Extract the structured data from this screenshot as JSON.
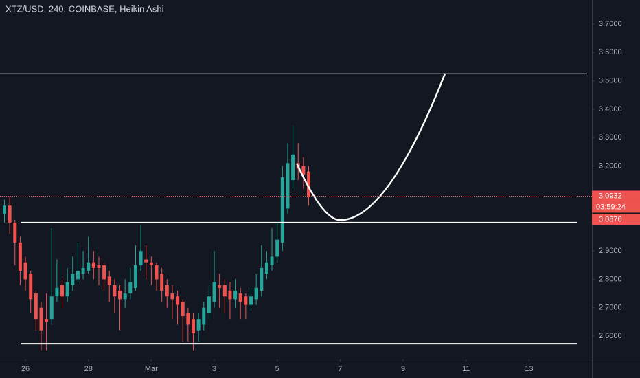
{
  "chart_data": {
    "type": "candlestick",
    "title": "XTZ/USD, 240, COINBASE, Heikin Ashi",
    "x": [
      -16,
      -12,
      -8,
      -4,
      0,
      4,
      8,
      12,
      16,
      20,
      24,
      28,
      32,
      36,
      40,
      44,
      48,
      52,
      56,
      60,
      64,
      68,
      72,
      76,
      80,
      84,
      88,
      92,
      96,
      100,
      104,
      108,
      112,
      116,
      120,
      124,
      128,
      132,
      136,
      140,
      144,
      148,
      152,
      156,
      160,
      164,
      168,
      172,
      176,
      180,
      184,
      188,
      192,
      196,
      200,
      204,
      208,
      212,
      216
    ],
    "open": [
      3.03,
      3.06,
      3.0,
      2.93,
      2.86,
      2.82,
      2.75,
      2.7,
      2.66,
      2.66,
      2.74,
      2.78,
      2.74,
      2.78,
      2.8,
      2.82,
      2.83,
      2.86,
      2.85,
      2.85,
      2.81,
      2.78,
      2.76,
      2.73,
      2.75,
      2.77,
      2.85,
      2.87,
      2.86,
      2.85,
      2.82,
      2.78,
      2.75,
      2.74,
      2.72,
      2.68,
      2.66,
      2.62,
      2.64,
      2.68,
      2.72,
      2.78,
      2.78,
      2.76,
      2.73,
      2.75,
      2.74,
      2.71,
      2.73,
      2.76,
      2.82,
      2.85,
      2.88,
      2.93,
      3.05,
      3.15,
      3.21,
      3.2,
      3.18
    ],
    "high": [
      3.08,
      3.09,
      3.01,
      2.95,
      2.88,
      2.83,
      2.76,
      2.72,
      2.75,
      2.98,
      2.87,
      2.8,
      2.84,
      2.88,
      2.93,
      2.9,
      2.95,
      2.9,
      2.88,
      2.86,
      2.83,
      2.8,
      2.78,
      2.8,
      2.84,
      2.92,
      2.99,
      2.92,
      2.88,
      2.86,
      2.84,
      2.8,
      2.78,
      2.76,
      2.73,
      2.7,
      2.68,
      2.68,
      2.72,
      2.78,
      2.9,
      2.82,
      2.8,
      2.79,
      2.8,
      2.77,
      2.75,
      2.77,
      2.82,
      2.92,
      2.9,
      2.98,
      3.0,
      3.2,
      3.28,
      3.34,
      3.28,
      3.23,
      3.2
    ],
    "low": [
      3.0,
      2.96,
      2.85,
      2.78,
      2.76,
      2.68,
      2.62,
      2.55,
      2.55,
      2.64,
      2.72,
      2.7,
      2.72,
      2.76,
      2.79,
      2.8,
      2.82,
      2.8,
      2.78,
      2.76,
      2.72,
      2.68,
      2.62,
      2.7,
      2.73,
      2.76,
      2.83,
      2.8,
      2.78,
      2.76,
      2.72,
      2.7,
      2.66,
      2.64,
      2.58,
      2.58,
      2.55,
      2.58,
      2.62,
      2.66,
      2.7,
      2.7,
      2.68,
      2.66,
      2.7,
      2.66,
      2.66,
      2.69,
      2.71,
      2.74,
      2.8,
      2.83,
      2.86,
      2.9,
      3.03,
      3.12,
      3.15,
      3.12,
      3.06
    ],
    "close": [
      3.06,
      3.0,
      2.93,
      2.83,
      2.8,
      2.73,
      2.66,
      2.62,
      2.65,
      2.74,
      2.77,
      2.74,
      2.79,
      2.82,
      2.83,
      2.84,
      2.86,
      2.84,
      2.84,
      2.8,
      2.78,
      2.74,
      2.73,
      2.75,
      2.79,
      2.85,
      2.9,
      2.86,
      2.85,
      2.8,
      2.76,
      2.74,
      2.73,
      2.71,
      2.67,
      2.64,
      2.61,
      2.66,
      2.7,
      2.74,
      2.79,
      2.77,
      2.74,
      2.73,
      2.76,
      2.72,
      2.71,
      2.74,
      2.77,
      2.84,
      2.86,
      2.88,
      2.94,
      3.16,
      3.21,
      3.24,
      3.19,
      3.17,
      3.09
    ],
    "up_color": "#26a69a",
    "down_color": "#ef5350",
    "xlim": [
      -19.4,
      432
    ],
    "ylim": [
      2.52,
      3.785
    ],
    "xticks": [
      {
        "value": 0,
        "label": "26"
      },
      {
        "value": 48,
        "label": "28"
      },
      {
        "value": 96,
        "label": "Mar"
      },
      {
        "value": 144,
        "label": "3"
      },
      {
        "value": 192,
        "label": "5"
      },
      {
        "value": 240,
        "label": "7"
      },
      {
        "value": 288,
        "label": "9"
      },
      {
        "value": 336,
        "label": "11"
      },
      {
        "value": 384,
        "label": "13"
      }
    ],
    "yticks": [
      {
        "value": 2.6,
        "label": "2.6000"
      },
      {
        "value": 2.7,
        "label": "2.7000"
      },
      {
        "value": 2.8,
        "label": "2.8000"
      },
      {
        "value": 2.9,
        "label": "2.9000"
      },
      {
        "value": 3.2,
        "label": "3.2000"
      },
      {
        "value": 3.3,
        "label": "3.3000"
      },
      {
        "value": 3.4,
        "label": "3.4000"
      },
      {
        "value": 3.5,
        "label": "3.5000"
      },
      {
        "value": 3.6,
        "label": "3.6000"
      },
      {
        "value": 3.7,
        "label": "3.7000"
      }
    ],
    "levels": [
      3.525,
      3.0,
      2.573
    ],
    "curve": {
      "x": [
        207,
        240,
        320
      ],
      "y": [
        3.208,
        3.009,
        3.526
      ]
    },
    "last_price": 3.0932,
    "countdown": "03:59:24",
    "ha_close": {
      "value": 3.087,
      "label": "3.0870"
    }
  }
}
